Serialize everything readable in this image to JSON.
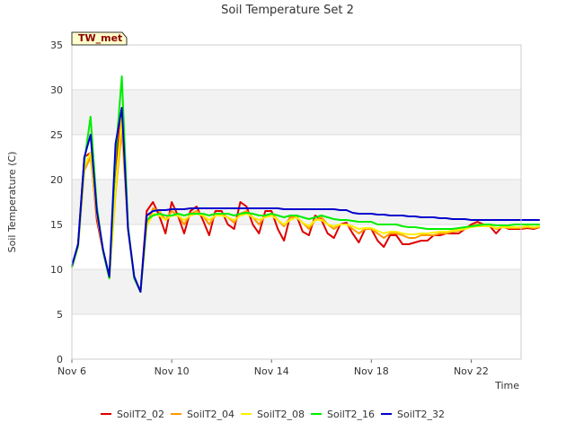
{
  "chart_data": {
    "type": "line",
    "title": "Soil Temperature Set 2",
    "xlabel": "Time",
    "ylabel": "Soil Temperature (C)",
    "badge": "TW_met",
    "ylim": [
      0,
      35
    ],
    "yticks": [
      "0",
      "5",
      "10",
      "15",
      "20",
      "25",
      "30",
      "35"
    ],
    "xlim": [
      "2023-11-06",
      "2023-11-24"
    ],
    "xticks": [
      {
        "label": "Nov 6",
        "date": "2023-11-06"
      },
      {
        "label": "Nov 10",
        "date": "2023-11-10"
      },
      {
        "label": "Nov 14",
        "date": "2023-11-14"
      },
      {
        "label": "Nov 18",
        "date": "2023-11-18"
      },
      {
        "label": "Nov 22",
        "date": "2023-11-22"
      }
    ],
    "x": [
      "2023-11-06 00:00",
      "2023-11-06 06:00",
      "2023-11-06 12:00",
      "2023-11-06 18:00",
      "2023-11-07 00:00",
      "2023-11-07 06:00",
      "2023-11-07 12:00",
      "2023-11-07 18:00",
      "2023-11-08 00:00",
      "2023-11-08 06:00",
      "2023-11-08 12:00",
      "2023-11-08 18:00",
      "2023-11-09 00:00",
      "2023-11-09 06:00",
      "2023-11-09 12:00",
      "2023-11-09 18:00",
      "2023-11-10 00:00",
      "2023-11-10 06:00",
      "2023-11-10 12:00",
      "2023-11-10 18:00",
      "2023-11-11 00:00",
      "2023-11-11 06:00",
      "2023-11-11 12:00",
      "2023-11-11 18:00",
      "2023-11-12 00:00",
      "2023-11-12 06:00",
      "2023-11-12 12:00",
      "2023-11-12 18:00",
      "2023-11-13 00:00",
      "2023-11-13 06:00",
      "2023-11-13 12:00",
      "2023-11-13 18:00",
      "2023-11-14 00:00",
      "2023-11-14 06:00",
      "2023-11-14 12:00",
      "2023-11-14 18:00",
      "2023-11-15 00:00",
      "2023-11-15 06:00",
      "2023-11-15 12:00",
      "2023-11-15 18:00",
      "2023-11-16 00:00",
      "2023-11-16 06:00",
      "2023-11-16 12:00",
      "2023-11-16 18:00",
      "2023-11-17 00:00",
      "2023-11-17 06:00",
      "2023-11-17 12:00",
      "2023-11-17 18:00",
      "2023-11-18 00:00",
      "2023-11-18 06:00",
      "2023-11-18 12:00",
      "2023-11-18 18:00",
      "2023-11-19 00:00",
      "2023-11-19 06:00",
      "2023-11-19 12:00",
      "2023-11-19 18:00",
      "2023-11-20 00:00",
      "2023-11-20 06:00",
      "2023-11-20 12:00",
      "2023-11-20 18:00",
      "2023-11-21 00:00",
      "2023-11-21 06:00",
      "2023-11-21 12:00",
      "2023-11-21 18:00",
      "2023-11-22 00:00",
      "2023-11-22 06:00",
      "2023-11-22 12:00",
      "2023-11-22 18:00",
      "2023-11-23 00:00",
      "2023-11-23 06:00",
      "2023-11-23 12:00",
      "2023-11-23 18:00",
      "2023-11-24 00:00",
      "2023-11-24 06:00",
      "2023-11-24 12:00",
      "2023-11-24 18:00"
    ],
    "series": [
      {
        "name": "SoilT2_02",
        "color": "#dd0000",
        "values": [
          10.2,
          12.8,
          22.5,
          23.0,
          15.5,
          12.0,
          9.0,
          21.5,
          27.5,
          14.5,
          9.0,
          7.5,
          16.5,
          17.5,
          16.0,
          14.0,
          17.5,
          16.0,
          14.0,
          16.5,
          17.0,
          15.5,
          13.8,
          16.5,
          16.5,
          15.0,
          14.5,
          17.5,
          17.0,
          15.0,
          14.0,
          16.5,
          16.5,
          14.5,
          13.2,
          16.0,
          16.0,
          14.2,
          13.8,
          16.0,
          15.5,
          14.0,
          13.5,
          15.0,
          15.2,
          14.0,
          13.0,
          14.5,
          14.5,
          13.2,
          12.5,
          13.8,
          13.8,
          12.8,
          12.8,
          13.0,
          13.2,
          13.2,
          13.8,
          13.8,
          14.0,
          14.0,
          14.0,
          14.5,
          15.0,
          15.3,
          15.0,
          14.8,
          14.0,
          14.8,
          14.5,
          14.5,
          14.5,
          14.6,
          14.5,
          14.7
        ]
      },
      {
        "name": "SoilT2_04",
        "color": "#ff9900",
        "values": [
          10.2,
          12.5,
          21.0,
          22.5,
          16.0,
          12.0,
          9.0,
          18.5,
          25.5,
          14.5,
          9.0,
          7.5,
          15.0,
          16.8,
          16.5,
          15.5,
          16.5,
          16.0,
          15.0,
          16.2,
          16.5,
          16.0,
          15.0,
          16.0,
          16.2,
          15.8,
          15.2,
          16.2,
          16.5,
          15.8,
          15.0,
          16.0,
          16.2,
          15.5,
          14.8,
          15.8,
          15.8,
          15.2,
          14.5,
          15.5,
          15.8,
          15.0,
          14.5,
          15.0,
          15.0,
          14.5,
          14.0,
          14.5,
          14.5,
          14.0,
          13.5,
          14.0,
          14.0,
          13.8,
          13.5,
          13.5,
          13.8,
          13.8,
          13.8,
          14.0,
          14.0,
          14.2,
          14.3,
          14.5,
          14.8,
          15.0,
          15.0,
          14.9,
          14.5,
          14.7,
          14.6,
          14.6,
          14.6,
          14.7,
          14.6,
          14.7
        ]
      },
      {
        "name": "SoilT2_08",
        "color": "#ffee00",
        "values": [
          10.2,
          12.5,
          21.5,
          23.0,
          16.5,
          12.0,
          9.0,
          19.0,
          27.0,
          14.5,
          9.0,
          7.5,
          14.8,
          16.2,
          16.0,
          15.5,
          16.0,
          16.0,
          15.5,
          16.0,
          16.2,
          16.0,
          15.5,
          16.0,
          16.0,
          15.8,
          15.5,
          16.0,
          16.2,
          15.8,
          15.5,
          15.8,
          16.0,
          15.5,
          15.0,
          15.5,
          15.8,
          15.2,
          14.8,
          15.5,
          15.5,
          15.0,
          14.8,
          15.0,
          15.0,
          14.8,
          14.5,
          14.6,
          14.6,
          14.3,
          14.0,
          14.2,
          14.2,
          14.0,
          13.9,
          13.9,
          14.0,
          14.0,
          14.1,
          14.2,
          14.2,
          14.3,
          14.4,
          14.5,
          14.7,
          14.8,
          14.8,
          14.8,
          14.6,
          14.7,
          14.7,
          14.7,
          14.7,
          14.8,
          14.7,
          14.8
        ]
      },
      {
        "name": "SoilT2_16",
        "color": "#00ee00",
        "values": [
          10.2,
          12.6,
          22.0,
          27.0,
          17.0,
          12.0,
          9.0,
          22.5,
          31.5,
          14.8,
          9.0,
          7.5,
          15.5,
          16.0,
          16.2,
          16.0,
          16.0,
          16.2,
          16.0,
          16.2,
          16.2,
          16.2,
          16.0,
          16.2,
          16.2,
          16.2,
          16.0,
          16.2,
          16.3,
          16.2,
          16.0,
          16.0,
          16.2,
          16.0,
          15.8,
          16.0,
          16.0,
          15.8,
          15.6,
          15.8,
          16.0,
          15.8,
          15.6,
          15.5,
          15.5,
          15.4,
          15.3,
          15.3,
          15.3,
          15.0,
          15.0,
          15.0,
          15.0,
          14.8,
          14.7,
          14.7,
          14.6,
          14.5,
          14.5,
          14.5,
          14.5,
          14.5,
          14.6,
          14.7,
          14.8,
          14.9,
          15.0,
          15.0,
          14.9,
          14.9,
          14.9,
          15.0,
          15.0,
          15.0,
          15.0,
          15.0
        ]
      },
      {
        "name": "SoilT2_32",
        "color": "#0000cc",
        "values": [
          10.4,
          12.8,
          22.5,
          25.0,
          16.5,
          12.2,
          9.2,
          24.0,
          28.0,
          14.5,
          9.2,
          7.5,
          16.0,
          16.5,
          16.6,
          16.6,
          16.7,
          16.7,
          16.7,
          16.8,
          16.8,
          16.8,
          16.8,
          16.8,
          16.8,
          16.8,
          16.8,
          16.8,
          16.8,
          16.8,
          16.8,
          16.8,
          16.8,
          16.8,
          16.7,
          16.7,
          16.7,
          16.7,
          16.7,
          16.7,
          16.7,
          16.7,
          16.7,
          16.6,
          16.6,
          16.3,
          16.2,
          16.2,
          16.2,
          16.1,
          16.1,
          16.0,
          16.0,
          16.0,
          15.9,
          15.9,
          15.8,
          15.8,
          15.8,
          15.7,
          15.7,
          15.6,
          15.6,
          15.6,
          15.5,
          15.5,
          15.5,
          15.5,
          15.5,
          15.5,
          15.5,
          15.5,
          15.5,
          15.5,
          15.5,
          15.5
        ]
      }
    ],
    "legend_position": "bottom",
    "grid": true
  }
}
